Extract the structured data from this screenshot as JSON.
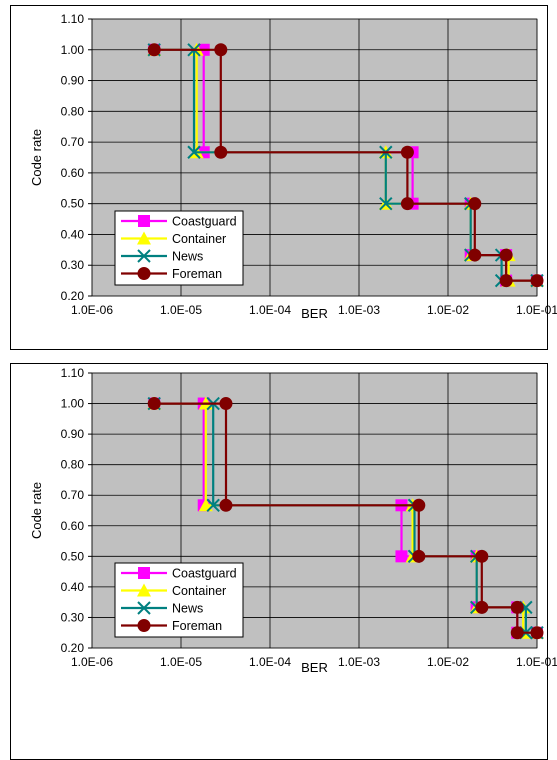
{
  "charts": [
    {
      "chart_data": {
        "type": "line",
        "xlabel": "BER",
        "ylabel": "Code rate",
        "xscale": "log",
        "xlim": [
          1e-06,
          0.1
        ],
        "ylim": [
          0.2,
          1.1
        ],
        "x_ticks": [
          "1.0E-06",
          "1.0E-05",
          "1.0E-04",
          "1.0E-03",
          "1.0E-02",
          "1.0E-01"
        ],
        "y_ticks": [
          "0.20",
          "0.30",
          "0.40",
          "0.50",
          "0.60",
          "0.70",
          "0.80",
          "0.90",
          "1.00",
          "1.10"
        ],
        "grid": true,
        "legend_position": "bottom-left",
        "series": [
          {
            "name": "Coastguard",
            "color": "#ff00ff",
            "marker": "square",
            "points": [
              [
                5e-06,
                1.0
              ],
              [
                1.8e-05,
                1.0
              ],
              [
                1.8e-05,
                0.667
              ],
              [
                0.004,
                0.667
              ],
              [
                0.004,
                0.5
              ],
              [
                0.018,
                0.5
              ],
              [
                0.018,
                0.333
              ],
              [
                0.045,
                0.333
              ],
              [
                0.045,
                0.25
              ],
              [
                0.1,
                0.25
              ]
            ]
          },
          {
            "name": "Container",
            "color": "#ffff00",
            "marker": "triangle",
            "points": [
              [
                5e-06,
                1.0
              ],
              [
                1.5e-05,
                1.0
              ],
              [
                1.5e-05,
                0.667
              ],
              [
                0.002,
                0.667
              ],
              [
                0.002,
                0.5
              ],
              [
                0.018,
                0.5
              ],
              [
                0.018,
                0.333
              ],
              [
                0.048,
                0.333
              ],
              [
                0.048,
                0.25
              ],
              [
                0.1,
                0.25
              ]
            ]
          },
          {
            "name": "News",
            "color": "#008080",
            "marker": "x",
            "points": [
              [
                5e-06,
                1.0
              ],
              [
                1.4e-05,
                1.0
              ],
              [
                1.4e-05,
                0.667
              ],
              [
                0.002,
                0.667
              ],
              [
                0.002,
                0.5
              ],
              [
                0.018,
                0.5
              ],
              [
                0.018,
                0.333
              ],
              [
                0.04,
                0.333
              ],
              [
                0.04,
                0.25
              ],
              [
                0.1,
                0.25
              ]
            ]
          },
          {
            "name": "Foreman",
            "color": "#800000",
            "marker": "circle",
            "points": [
              [
                5e-06,
                1.0
              ],
              [
                2.8e-05,
                1.0
              ],
              [
                2.8e-05,
                0.667
              ],
              [
                0.0035,
                0.667
              ],
              [
                0.0035,
                0.5
              ],
              [
                0.02,
                0.5
              ],
              [
                0.02,
                0.333
              ],
              [
                0.045,
                0.333
              ],
              [
                0.045,
                0.25
              ],
              [
                0.1,
                0.25
              ]
            ]
          }
        ]
      }
    },
    {
      "chart_data": {
        "type": "line",
        "xlabel": "BER",
        "ylabel": "Code rate",
        "xscale": "log",
        "xlim": [
          1e-06,
          0.1
        ],
        "ylim": [
          0.2,
          1.1
        ],
        "x_ticks": [
          "1.0E-06",
          "1.0E-05",
          "1.0E-04",
          "1.0E-03",
          "1.0E-02",
          "1.0E-01"
        ],
        "y_ticks": [
          "0.20",
          "0.30",
          "0.40",
          "0.50",
          "0.60",
          "0.70",
          "0.80",
          "0.90",
          "1.00",
          "1.10"
        ],
        "grid": true,
        "legend_position": "bottom-left",
        "series": [
          {
            "name": "Coastguard",
            "color": "#ff00ff",
            "marker": "square",
            "points": [
              [
                5e-06,
                1.0
              ],
              [
                1.8e-05,
                1.0
              ],
              [
                1.8e-05,
                0.667
              ],
              [
                0.003,
                0.667
              ],
              [
                0.003,
                0.5
              ],
              [
                0.021,
                0.5
              ],
              [
                0.021,
                0.333
              ],
              [
                0.06,
                0.333
              ],
              [
                0.06,
                0.25
              ],
              [
                0.1,
                0.25
              ]
            ]
          },
          {
            "name": "Container",
            "color": "#ffff00",
            "marker": "triangle",
            "points": [
              [
                5e-06,
                1.0
              ],
              [
                1.9e-05,
                1.0
              ],
              [
                1.9e-05,
                0.667
              ],
              [
                0.004,
                0.667
              ],
              [
                0.004,
                0.5
              ],
              [
                0.021,
                0.5
              ],
              [
                0.021,
                0.333
              ],
              [
                0.07,
                0.333
              ],
              [
                0.07,
                0.25
              ],
              [
                0.1,
                0.25
              ]
            ]
          },
          {
            "name": "News",
            "color": "#008080",
            "marker": "x",
            "points": [
              [
                5e-06,
                1.0
              ],
              [
                2.3e-05,
                1.0
              ],
              [
                2.3e-05,
                0.667
              ],
              [
                0.0042,
                0.667
              ],
              [
                0.0042,
                0.5
              ],
              [
                0.021,
                0.5
              ],
              [
                0.021,
                0.333
              ],
              [
                0.075,
                0.333
              ],
              [
                0.075,
                0.25
              ],
              [
                0.1,
                0.25
              ]
            ]
          },
          {
            "name": "Foreman",
            "color": "#800000",
            "marker": "circle",
            "points": [
              [
                5e-06,
                1.0
              ],
              [
                3.2e-05,
                1.0
              ],
              [
                3.2e-05,
                0.667
              ],
              [
                0.0047,
                0.667
              ],
              [
                0.0047,
                0.5
              ],
              [
                0.024,
                0.5
              ],
              [
                0.024,
                0.333
              ],
              [
                0.06,
                0.333
              ],
              [
                0.06,
                0.25
              ],
              [
                0.1,
                0.25
              ]
            ]
          }
        ]
      }
    }
  ]
}
